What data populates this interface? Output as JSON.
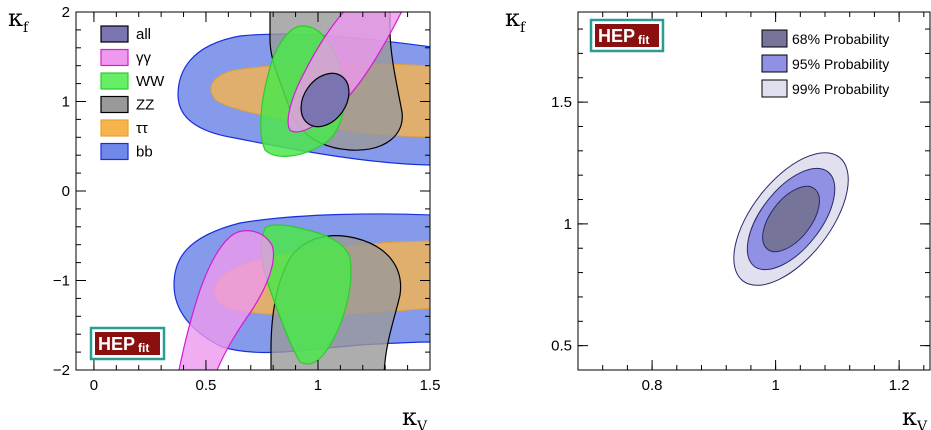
{
  "chart_data": [
    {
      "type": "contour",
      "xlabel": "κ",
      "xlabel_sub": "V",
      "ylabel": "κ",
      "ylabel_sub": "f",
      "xlim": [
        -0.08,
        1.5
      ],
      "ylim": [
        -2,
        2
      ],
      "xticks": [
        "0",
        "0.5",
        "1",
        "1.5"
      ],
      "xtick_values": [
        0,
        0.5,
        1,
        1.5
      ],
      "yticks": [
        "−2",
        "−1",
        "0",
        "1",
        "2"
      ],
      "ytick_values": [
        -2,
        -1,
        0,
        1,
        2
      ],
      "legend": [
        {
          "label": "all",
          "fill": "#7a74b0",
          "stroke": "#000000"
        },
        {
          "label": "γγ",
          "fill": "#ee99ee",
          "stroke": "#d21ed2"
        },
        {
          "label": "WW",
          "fill": "#66ee66",
          "stroke": "#2ccc2c"
        },
        {
          "label": "ZZ",
          "fill": "#999999",
          "stroke": "#000000"
        },
        {
          "label": "ττ",
          "fill": "#f7b44e",
          "stroke": "#e8a030"
        },
        {
          "label": "bb",
          "fill": "#7088e8",
          "stroke": "#1a2ee0"
        }
      ],
      "logo": {
        "main": "HEP",
        "sub": "fit"
      }
    },
    {
      "type": "contour",
      "xlabel": "κ",
      "xlabel_sub": "V",
      "ylabel": "κ",
      "ylabel_sub": "f",
      "xlim": [
        0.68,
        1.25
      ],
      "ylim": [
        0.4,
        1.87
      ],
      "xticks": [
        "0.8",
        "1",
        "1.2"
      ],
      "xtick_values": [
        0.8,
        1.0,
        1.2
      ],
      "yticks": [
        "0.5",
        "1",
        "1.5"
      ],
      "ytick_values": [
        0.5,
        1.0,
        1.5
      ],
      "center": [
        1.025,
        1.02
      ],
      "regions": [
        {
          "label": "99% Probability",
          "fill": "#e1e0ee",
          "rx": 0.127,
          "ry": 0.32
        },
        {
          "label": "95% Probability",
          "fill": "#9090e4",
          "rx": 0.097,
          "ry": 0.245
        },
        {
          "label": "68% Probability",
          "fill": "#767498",
          "rx": 0.062,
          "ry": 0.165
        }
      ],
      "legend": [
        {
          "label": "68% Probability",
          "fill": "#767498"
        },
        {
          "label": "95% Probability",
          "fill": "#9090e4"
        },
        {
          "label": "99% Probability",
          "fill": "#e1e0ee"
        }
      ],
      "logo": {
        "main": "HEP",
        "sub": "fit"
      }
    }
  ]
}
